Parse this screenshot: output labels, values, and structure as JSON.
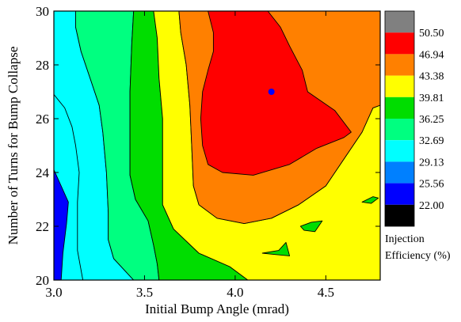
{
  "chart_data": {
    "type": "heatmap",
    "subtype": "filled-contour",
    "title": "",
    "xlabel": "Initial Bump Angle (mrad)",
    "ylabel": "Number of Turns for Bump Collapse",
    "xlim": [
      3.0,
      4.8
    ],
    "ylim": [
      20,
      30
    ],
    "x_ticks": [
      {
        "value": 3.0,
        "label": "3.0"
      },
      {
        "value": 3.5,
        "label": "3.5"
      },
      {
        "value": 4.0,
        "label": "4.0"
      },
      {
        "value": 4.5,
        "label": "4.5"
      }
    ],
    "y_ticks": [
      {
        "value": 20,
        "label": "20"
      },
      {
        "value": 22,
        "label": "22"
      },
      {
        "value": 24,
        "label": "24"
      },
      {
        "value": 26,
        "label": "26"
      },
      {
        "value": 28,
        "label": "28"
      },
      {
        "value": 30,
        "label": "30"
      }
    ],
    "levels": [
      "22.00",
      "25.56",
      "29.13",
      "32.69",
      "36.25",
      "39.81",
      "43.38",
      "46.94",
      "50.50"
    ],
    "level_colors": [
      "#000000",
      "#0000ff",
      "#0080ff",
      "#00ffff",
      "#00ff80",
      "#00dd00",
      "#ffff00",
      "#ff8000",
      "#ff0000",
      "#808080"
    ],
    "legend_title": [
      "Injection",
      "Efficiency (%)"
    ],
    "legend_position": "right",
    "marker": {
      "x": 4.2,
      "y": 27,
      "color": "#0000ff"
    },
    "regions": [
      {
        "color": "#0000ff",
        "points": [
          [
            3.0,
            20
          ],
          [
            3.0,
            24.1
          ],
          [
            3.04,
            23.5
          ],
          [
            3.08,
            22.9
          ],
          [
            3.07,
            22.1
          ],
          [
            3.05,
            21.0
          ],
          [
            3.04,
            20
          ]
        ]
      },
      {
        "color": "#00ffff",
        "points": [
          [
            3.0,
            30
          ],
          [
            3.0,
            26.9
          ],
          [
            3.06,
            26.4
          ],
          [
            3.1,
            25.7
          ],
          [
            3.12,
            25
          ],
          [
            3.14,
            24
          ],
          [
            3.13,
            22.9
          ],
          [
            3.13,
            21.1
          ],
          [
            3.16,
            20
          ],
          [
            3.44,
            20
          ],
          [
            3.33,
            20.8
          ],
          [
            3.3,
            21.5
          ],
          [
            3.3,
            22.5
          ],
          [
            3.29,
            24
          ],
          [
            3.27,
            25.5
          ],
          [
            3.25,
            26.5
          ],
          [
            3.2,
            27.5
          ],
          [
            3.15,
            28.5
          ],
          [
            3.12,
            29.4
          ],
          [
            3.12,
            30
          ]
        ]
      },
      {
        "color": "#00ff80",
        "points": [
          [
            3.12,
            30
          ],
          [
            3.12,
            29.4
          ],
          [
            3.15,
            28.5
          ],
          [
            3.2,
            27.5
          ],
          [
            3.25,
            26.5
          ],
          [
            3.27,
            25.5
          ],
          [
            3.29,
            24
          ],
          [
            3.3,
            22.5
          ],
          [
            3.3,
            21.5
          ],
          [
            3.33,
            20.8
          ],
          [
            3.44,
            20
          ],
          [
            3.58,
            20
          ],
          [
            3.57,
            20.6
          ],
          [
            3.55,
            21.3
          ],
          [
            3.52,
            22.2
          ],
          [
            3.45,
            23
          ],
          [
            3.42,
            23.9
          ],
          [
            3.42,
            25.5
          ],
          [
            3.42,
            27
          ],
          [
            3.43,
            28.8
          ],
          [
            3.44,
            30
          ]
        ]
      },
      {
        "color": "#00dd00",
        "points": [
          [
            3.44,
            30
          ],
          [
            3.43,
            28.8
          ],
          [
            3.42,
            27
          ],
          [
            3.42,
            25.5
          ],
          [
            3.42,
            23.9
          ],
          [
            3.45,
            23
          ],
          [
            3.52,
            22.2
          ],
          [
            3.55,
            21.3
          ],
          [
            3.57,
            20.6
          ],
          [
            3.58,
            20
          ],
          [
            4.07,
            20
          ],
          [
            3.97,
            20.5
          ],
          [
            3.8,
            21
          ],
          [
            3.66,
            21.9
          ],
          [
            3.6,
            22.8
          ],
          [
            3.6,
            24.2
          ],
          [
            3.6,
            26
          ],
          [
            3.58,
            27.5
          ],
          [
            3.57,
            29
          ],
          [
            3.55,
            30
          ]
        ]
      },
      {
        "color": "#ffff00",
        "points": [
          [
            3.55,
            30
          ],
          [
            3.57,
            29
          ],
          [
            3.58,
            27.5
          ],
          [
            3.6,
            26
          ],
          [
            3.6,
            24.2
          ],
          [
            3.6,
            22.8
          ],
          [
            3.66,
            21.9
          ],
          [
            3.8,
            21
          ],
          [
            3.97,
            20.5
          ],
          [
            4.07,
            20
          ],
          [
            4.8,
            20
          ],
          [
            4.8,
            26.5
          ],
          [
            4.76,
            26.4
          ],
          [
            4.7,
            25.5
          ],
          [
            4.6,
            24.5
          ],
          [
            4.5,
            23.5
          ],
          [
            4.35,
            22.8
          ],
          [
            4.2,
            22.3
          ],
          [
            4.05,
            22.1
          ],
          [
            3.9,
            22.3
          ],
          [
            3.8,
            22.8
          ],
          [
            3.77,
            23.5
          ],
          [
            3.76,
            25
          ],
          [
            3.75,
            26.5
          ],
          [
            3.73,
            28
          ],
          [
            3.7,
            29.2
          ],
          [
            3.69,
            30
          ]
        ]
      },
      {
        "color": "#ff8000",
        "points": [
          [
            3.69,
            30
          ],
          [
            3.7,
            29.2
          ],
          [
            3.73,
            28
          ],
          [
            3.75,
            26.5
          ],
          [
            3.76,
            25
          ],
          [
            3.77,
            23.5
          ],
          [
            3.8,
            22.8
          ],
          [
            3.9,
            22.3
          ],
          [
            4.05,
            22.1
          ],
          [
            4.2,
            22.3
          ],
          [
            4.35,
            22.8
          ],
          [
            4.5,
            23.5
          ],
          [
            4.6,
            24.5
          ],
          [
            4.7,
            25.5
          ],
          [
            4.76,
            26.4
          ],
          [
            4.8,
            26.5
          ],
          [
            4.8,
            30
          ]
        ]
      },
      {
        "color": "#ff0000",
        "points": [
          [
            3.85,
            30
          ],
          [
            3.88,
            29.2
          ],
          [
            3.88,
            28.5
          ],
          [
            3.85,
            27.8
          ],
          [
            3.82,
            27
          ],
          [
            3.81,
            26
          ],
          [
            3.82,
            25
          ],
          [
            3.85,
            24.3
          ],
          [
            3.93,
            24
          ],
          [
            4.1,
            23.9
          ],
          [
            4.3,
            24.3
          ],
          [
            4.45,
            24.9
          ],
          [
            4.6,
            25.3
          ],
          [
            4.64,
            25.5
          ],
          [
            4.55,
            26.3
          ],
          [
            4.4,
            27
          ],
          [
            4.37,
            27.8
          ],
          [
            4.3,
            28.7
          ],
          [
            4.25,
            29.4
          ],
          [
            4.18,
            30
          ]
        ]
      },
      {
        "color": "#00dd00",
        "points": [
          [
            4.15,
            21
          ],
          [
            4.24,
            21.1
          ],
          [
            4.28,
            21.4
          ],
          [
            4.3,
            20.9
          ],
          [
            4.22,
            20.95
          ]
        ]
      },
      {
        "color": "#00dd00",
        "points": [
          [
            4.36,
            22
          ],
          [
            4.42,
            22.15
          ],
          [
            4.48,
            22.2
          ],
          [
            4.46,
            22.0
          ],
          [
            4.44,
            21.8
          ],
          [
            4.38,
            21.85
          ]
        ]
      },
      {
        "color": "#00dd00",
        "points": [
          [
            4.7,
            22.9
          ],
          [
            4.76,
            23.1
          ],
          [
            4.79,
            23.05
          ],
          [
            4.75,
            22.85
          ]
        ]
      }
    ]
  }
}
